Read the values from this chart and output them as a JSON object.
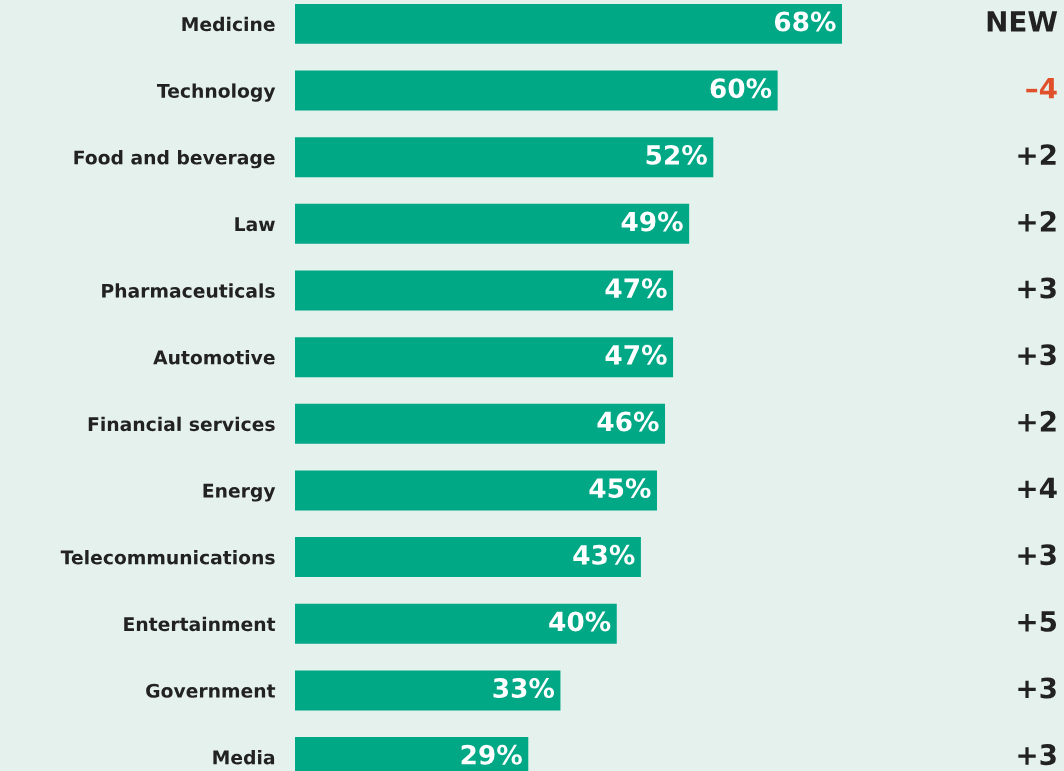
{
  "chart_data": {
    "type": "bar",
    "orientation": "horizontal",
    "categories": [
      "Medicine",
      "Technology",
      "Food and beverage",
      "Law",
      "Pharmaceuticals",
      "Automotive",
      "Financial services",
      "Energy",
      "Telecommunications",
      "Entertainment",
      "Government",
      "Media"
    ],
    "values": [
      68,
      60,
      52,
      49,
      47,
      47,
      46,
      45,
      43,
      40,
      33,
      29
    ],
    "value_labels": [
      "68%",
      "60%",
      "52%",
      "49%",
      "47%",
      "47%",
      "46%",
      "45%",
      "43%",
      "40%",
      "33%",
      "29%"
    ],
    "color": "#00a886",
    "annotations": [
      "NEW",
      "–4",
      "+2",
      "+2",
      "+3",
      "+3",
      "+2",
      "+4",
      "+3",
      "+5",
      "+3",
      "+3"
    ],
    "grid": false,
    "legend": false
  }
}
